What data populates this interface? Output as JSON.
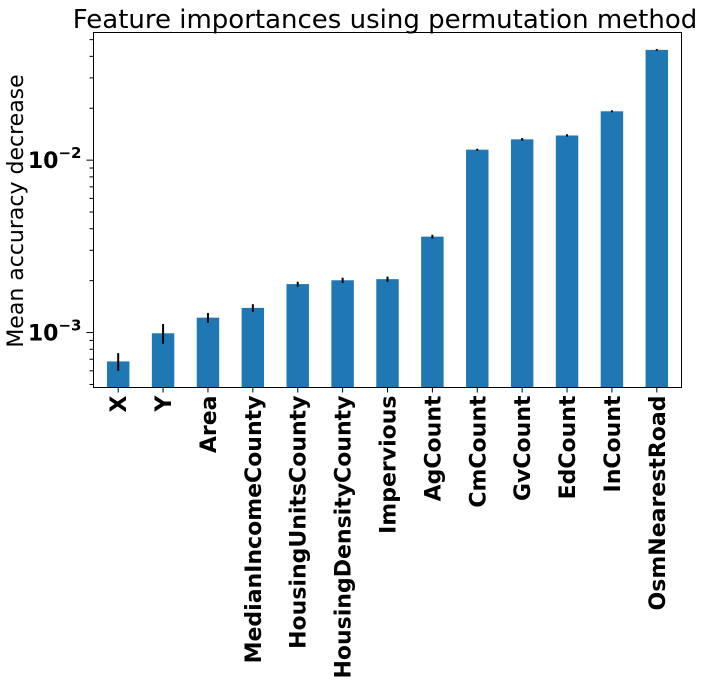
{
  "chart_data": {
    "type": "bar",
    "title": "Feature importances using permutation method",
    "xlabel": "",
    "ylabel": "Mean accuracy decrease",
    "yscale": "log",
    "ylim": [
      0.00048,
      0.055
    ],
    "ytick_labels": [
      {
        "value": 0.001,
        "base": "10",
        "exp": "−3"
      },
      {
        "value": 0.01,
        "base": "10",
        "exp": "−2"
      }
    ],
    "categories": [
      "X",
      "Y",
      "Area",
      "MedianIncomeCounty",
      "HousingUnitsCounty",
      "HousingDensityCounty",
      "Impervious",
      "AgCount",
      "CmCount",
      "GvCount",
      "EdCount",
      "InCount",
      "OsmNearestRoad"
    ],
    "values": [
      0.00068,
      0.00099,
      0.00122,
      0.00139,
      0.00191,
      0.00201,
      0.00204,
      0.0036,
      0.0115,
      0.0132,
      0.0139,
      0.0192,
      0.0436
    ],
    "errors": [
      8e-05,
      0.00013,
      8e-05,
      7e-05,
      6e-05,
      7e-05,
      7e-05,
      9e-05,
      0.00015,
      0.00023,
      0.00022,
      0.00025,
      0.0005
    ],
    "bar_color": "#1f77b4",
    "errorbar_color": "#000000",
    "grid": false,
    "legend": false
  }
}
